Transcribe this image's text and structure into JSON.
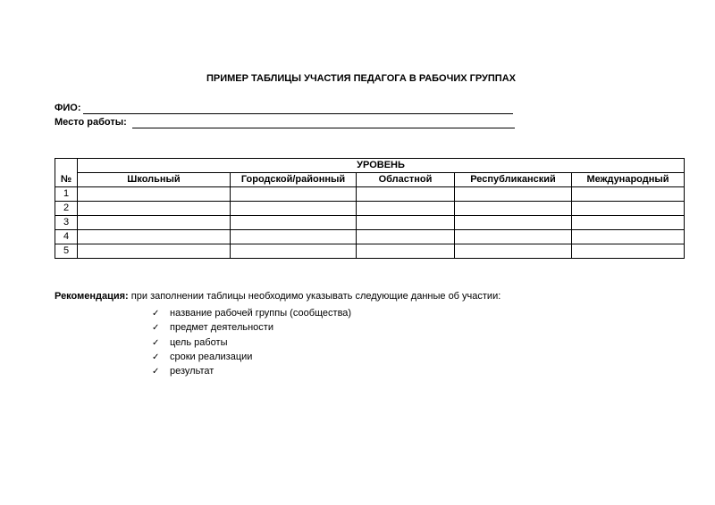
{
  "title": "ПРИМЕР ТАБЛИЦЫ УЧАСТИЯ ПЕДАГОГА В РАБОЧИХ ГРУППАХ",
  "fields": {
    "fio_label": "ФИО:",
    "fio_value": "",
    "work_label": "Место работы:",
    "work_value": ""
  },
  "table": {
    "number_header": "№",
    "group_header": "УРОВЕНЬ",
    "columns": [
      "Школьный",
      "Городской/районный",
      "Областной",
      "Республиканский",
      "Международный"
    ],
    "rows": [
      "1",
      "2",
      "3",
      "4",
      "5"
    ]
  },
  "recommendation": {
    "label": "Рекомендация:",
    "text": " при заполнении таблицы необходимо указывать следующие данные об участии:",
    "items": [
      "название рабочей группы (сообщества)",
      "предмет деятельности",
      "цель работы",
      "сроки реализации",
      "результат"
    ],
    "bullet_icon": "✓"
  }
}
